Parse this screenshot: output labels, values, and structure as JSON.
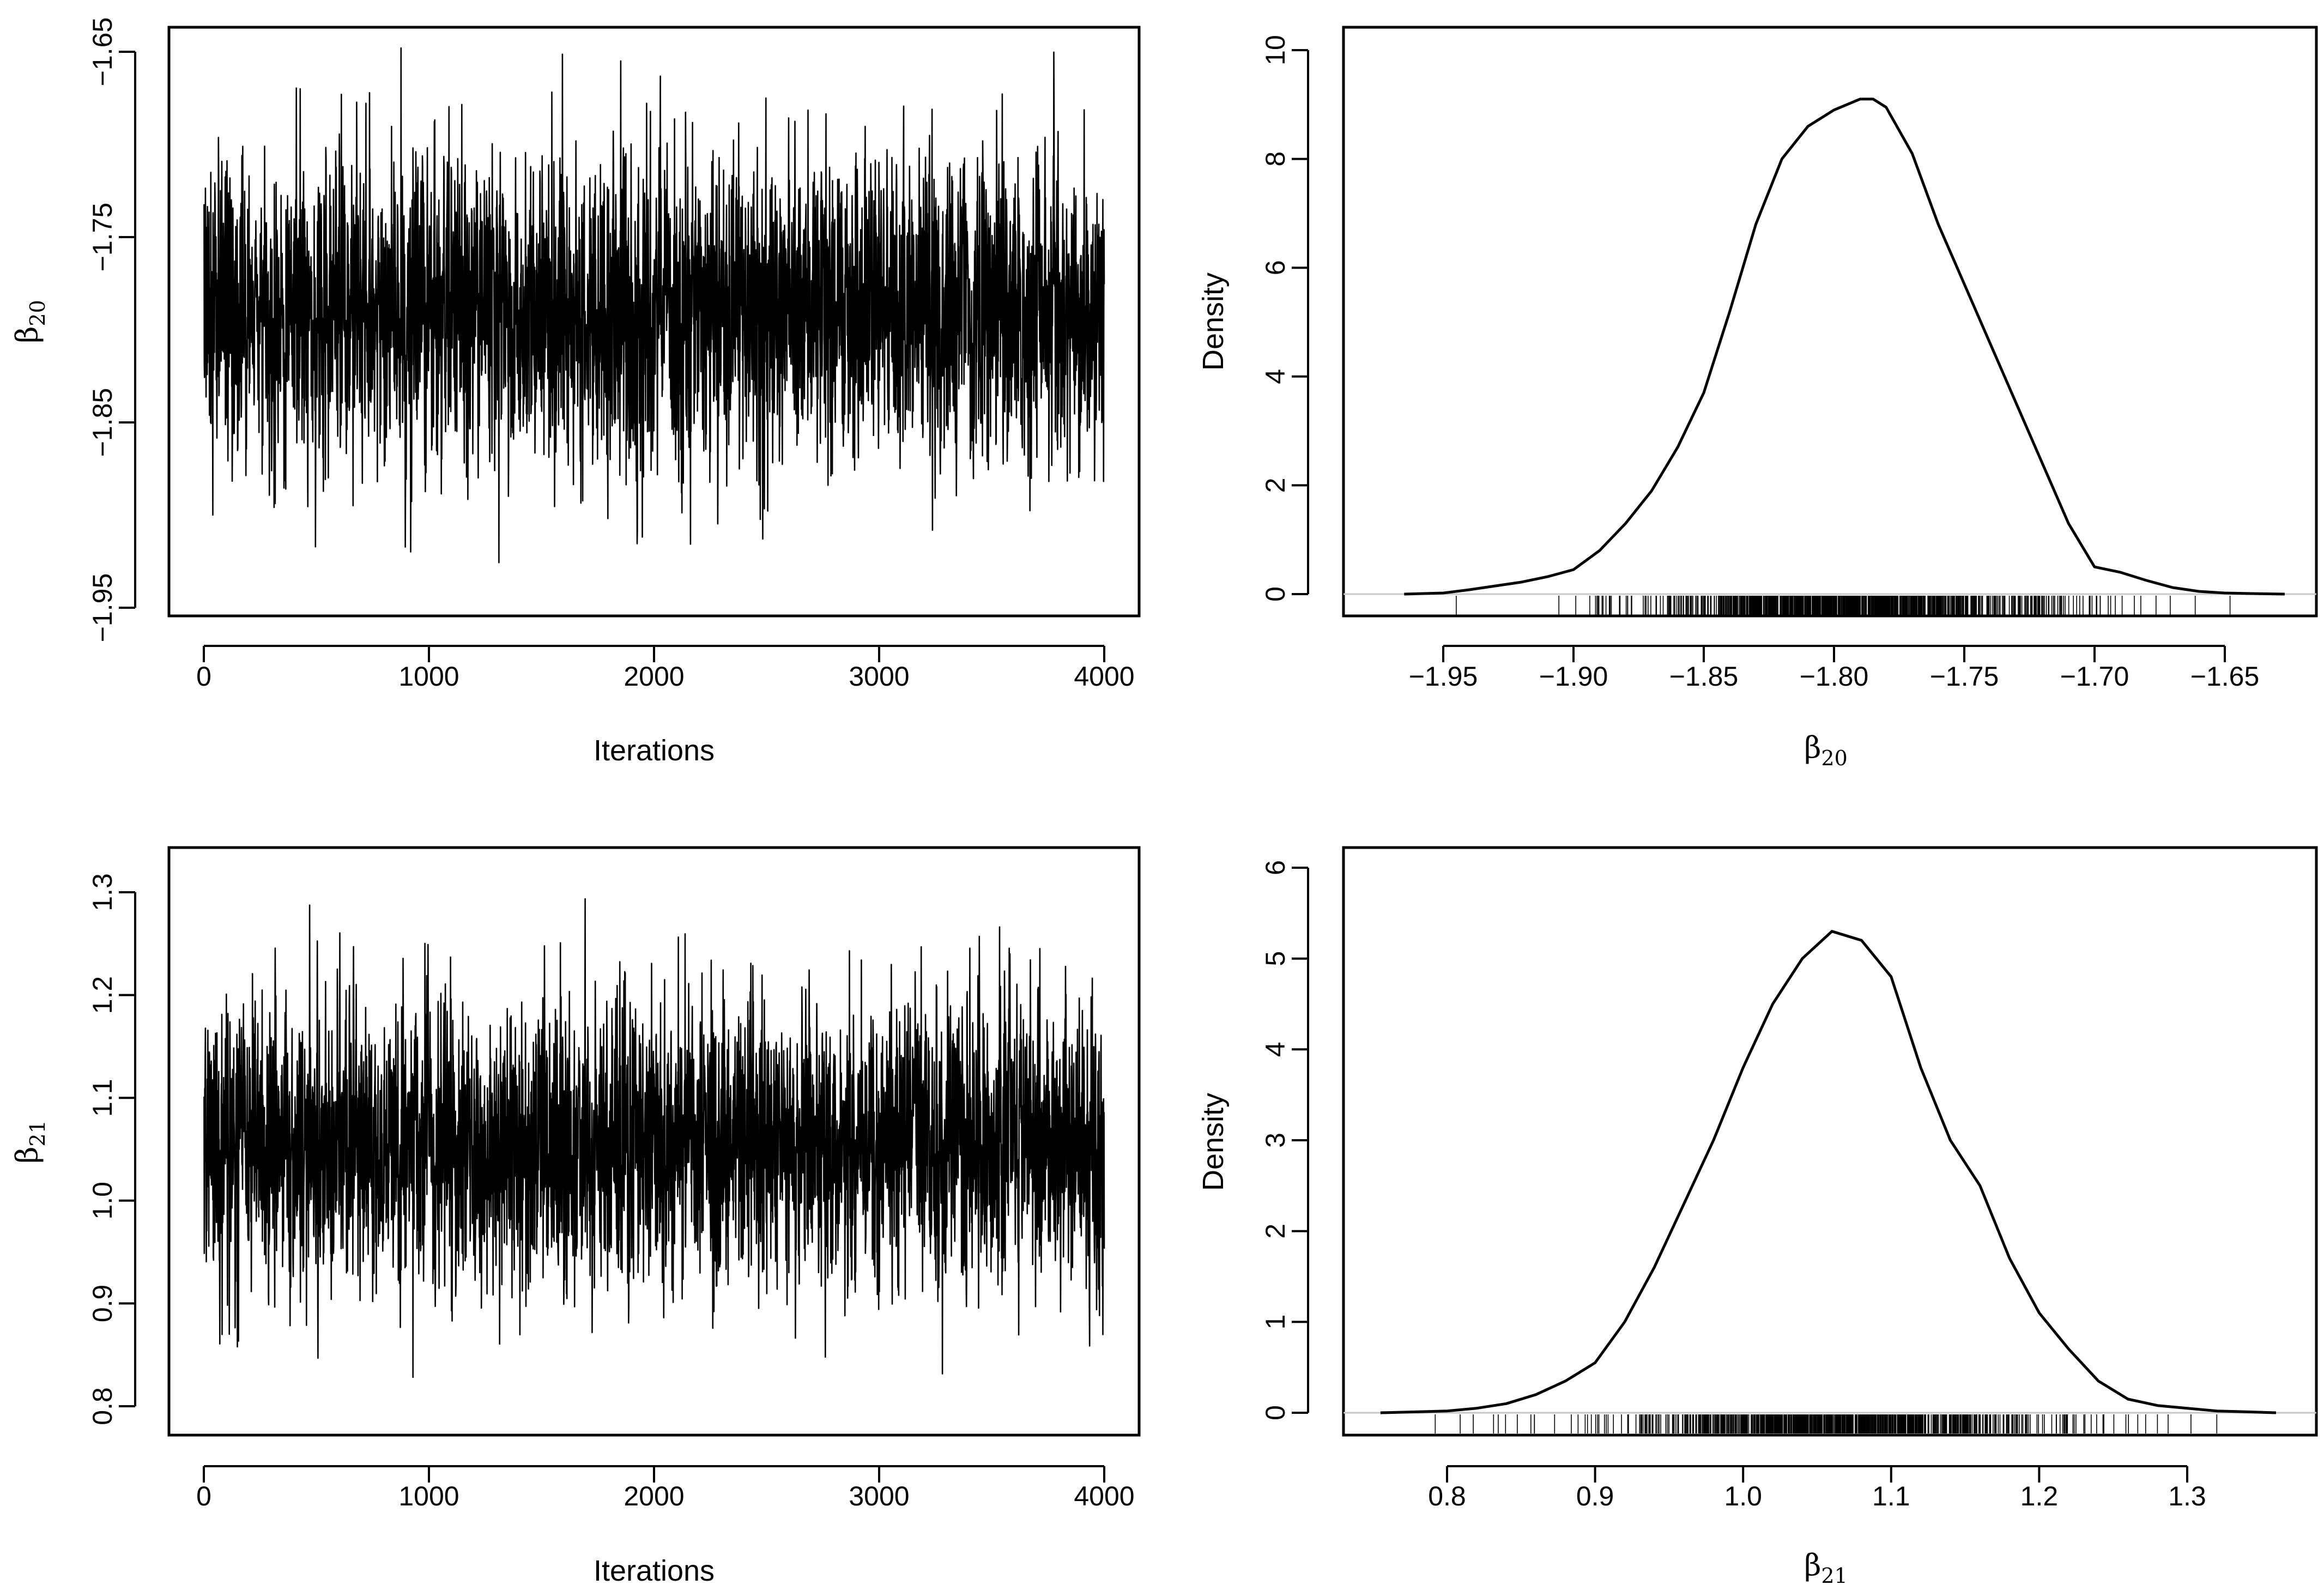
{
  "chart_data": [
    {
      "type": "line",
      "id": "trace-b20",
      "xlabel": "Iterations",
      "ylabel": {
        "symbol": "β",
        "subscript": "20"
      },
      "xlim": [
        0,
        4000
      ],
      "ylim": [
        -1.95,
        -1.65
      ],
      "xticks": [
        0,
        1000,
        2000,
        3000,
        4000
      ],
      "xtick_labels": [
        "0",
        "1000",
        "2000",
        "3000",
        "4000"
      ],
      "yticks": [
        -1.95,
        -1.85,
        -1.75,
        -1.65
      ],
      "ytick_labels": [
        "−1.95",
        "−1.85",
        "−1.75",
        "−1.65"
      ],
      "series": [
        {
          "values_summary": {
            "n": 4000,
            "mean": -1.79,
            "sd": 0.042,
            "min": -1.94,
            "max": -1.648
          }
        }
      ]
    },
    {
      "type": "line",
      "id": "density-b20",
      "xlabel": {
        "symbol": "β",
        "subscript": "20"
      },
      "ylabel": "Density",
      "xlim": [
        -1.95,
        -1.65
      ],
      "ylim": [
        0,
        10
      ],
      "xticks": [
        -1.95,
        -1.9,
        -1.85,
        -1.8,
        -1.75,
        -1.7,
        -1.65
      ],
      "xtick_labels": [
        "−1.95",
        "−1.90",
        "−1.85",
        "−1.80",
        "−1.75",
        "−1.70",
        "−1.65"
      ],
      "yticks": [
        0,
        2,
        4,
        6,
        8,
        10
      ],
      "ytick_labels": [
        "0",
        "2",
        "4",
        "6",
        "8",
        "10"
      ],
      "series": [
        {
          "x": [
            -1.965,
            -1.95,
            -1.94,
            -1.93,
            -1.92,
            -1.91,
            -1.9,
            -1.89,
            -1.88,
            -1.87,
            -1.86,
            -1.85,
            -1.84,
            -1.83,
            -1.82,
            -1.81,
            -1.8,
            -1.79,
            -1.785,
            -1.78,
            -1.77,
            -1.76,
            -1.75,
            -1.74,
            -1.73,
            -1.72,
            -1.71,
            -1.7,
            -1.69,
            -1.68,
            -1.67,
            -1.66,
            -1.65,
            -1.64,
            -1.627
          ],
          "y": [
            0.0,
            0.02,
            0.08,
            0.15,
            0.22,
            0.32,
            0.45,
            0.8,
            1.3,
            1.9,
            2.7,
            3.7,
            5.2,
            6.8,
            8.0,
            8.6,
            8.9,
            9.1,
            9.1,
            8.95,
            8.1,
            6.8,
            5.7,
            4.6,
            3.5,
            2.4,
            1.3,
            0.5,
            0.4,
            0.25,
            0.12,
            0.05,
            0.02,
            0.01,
            0.0
          ]
        }
      ],
      "rug": {
        "min": -1.945,
        "max": -1.648,
        "mean": -1.79,
        "sd": 0.042,
        "n": 900
      }
    },
    {
      "type": "line",
      "id": "trace-b21",
      "xlabel": "Iterations",
      "ylabel": {
        "symbol": "β",
        "subscript": "21"
      },
      "xlim": [
        0,
        4000
      ],
      "ylim": [
        0.79,
        1.33
      ],
      "xticks": [
        0,
        1000,
        2000,
        3000,
        4000
      ],
      "xtick_labels": [
        "0",
        "1000",
        "2000",
        "3000",
        "4000"
      ],
      "yticks": [
        0.8,
        0.9,
        1.0,
        1.1,
        1.2,
        1.3
      ],
      "ytick_labels": [
        "0.8",
        "0.9",
        "1.0",
        "1.1",
        "1.2",
        "1.3"
      ],
      "series": [
        {
          "values_summary": {
            "n": 4000,
            "mean": 1.065,
            "sd": 0.075,
            "min": 0.795,
            "max": 1.323
          }
        }
      ]
    },
    {
      "type": "line",
      "id": "density-b21",
      "xlabel": {
        "symbol": "β",
        "subscript": "21"
      },
      "ylabel": "Density",
      "xlim": [
        0.75,
        1.36
      ],
      "ylim": [
        0,
        6
      ],
      "xticks": [
        0.8,
        0.9,
        1.0,
        1.1,
        1.2,
        1.3
      ],
      "xtick_labels": [
        "0.8",
        "0.9",
        "1.0",
        "1.1",
        "1.2",
        "1.3"
      ],
      "yticks": [
        0,
        1,
        2,
        3,
        4,
        5,
        6
      ],
      "ytick_labels": [
        "0",
        "1",
        "2",
        "3",
        "4",
        "5",
        "6"
      ],
      "series": [
        {
          "x": [
            0.755,
            0.78,
            0.8,
            0.82,
            0.84,
            0.86,
            0.88,
            0.9,
            0.92,
            0.94,
            0.96,
            0.98,
            1.0,
            1.02,
            1.04,
            1.06,
            1.08,
            1.1,
            1.12,
            1.14,
            1.16,
            1.18,
            1.2,
            1.22,
            1.24,
            1.26,
            1.28,
            1.3,
            1.32,
            1.34,
            1.36
          ],
          "y": [
            0.0,
            0.01,
            0.02,
            0.05,
            0.1,
            0.2,
            0.35,
            0.55,
            1.0,
            1.6,
            2.3,
            3.0,
            3.8,
            4.5,
            5.0,
            5.3,
            5.2,
            4.8,
            3.8,
            3.0,
            2.5,
            1.7,
            1.1,
            0.7,
            0.35,
            0.15,
            0.08,
            0.05,
            0.02,
            0.01,
            0.0
          ]
        }
      ],
      "rug": {
        "min": 0.792,
        "max": 1.32,
        "mean": 1.065,
        "sd": 0.075,
        "n": 900
      }
    }
  ]
}
